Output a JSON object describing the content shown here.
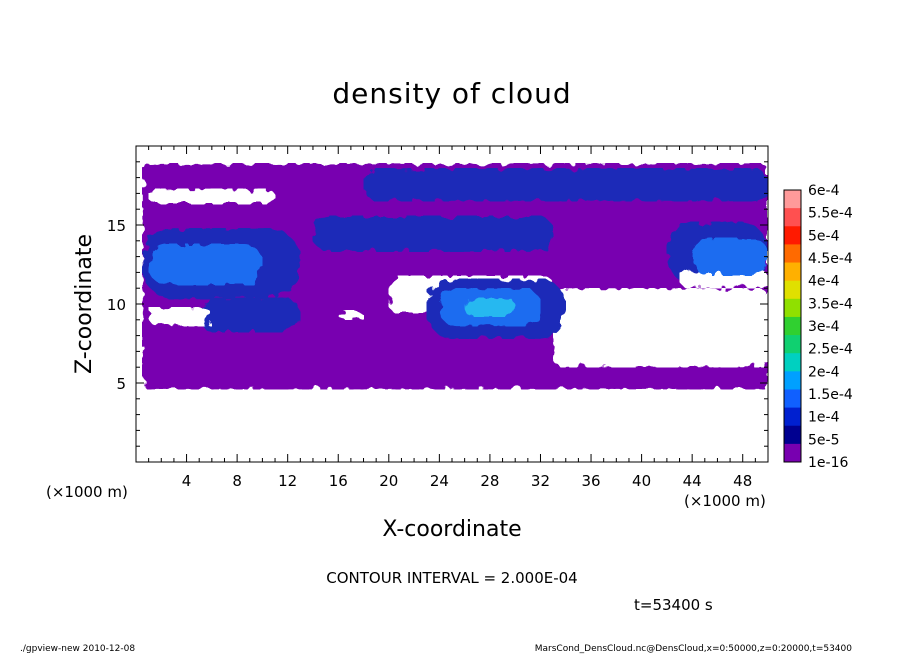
{
  "chart_data": {
    "type": "heatmap",
    "title": "density of cloud",
    "xlabel": "X-coordinate",
    "ylabel": "Z-coordinate",
    "x_unit": "(×1000 m)",
    "y_unit": "(×1000 m)",
    "xlim": [
      0,
      50
    ],
    "ylim": [
      0,
      20
    ],
    "x_ticks": [
      "4",
      "8",
      "12",
      "16",
      "20",
      "24",
      "28",
      "32",
      "36",
      "40",
      "44",
      "48"
    ],
    "y_ticks": [
      "5",
      "10",
      "15"
    ],
    "contour_interval": "CONTOUR INTERVAL = 2.000E-04",
    "time_label": "t=53400 s",
    "colorbar": {
      "labels": [
        "6e-4",
        "5.5e-4",
        "5e-4",
        "4.5e-4",
        "4e-4",
        "3.5e-4",
        "3e-4",
        "2.5e-4",
        "2e-4",
        "1.5e-4",
        "1e-4",
        "5e-5",
        "1e-16"
      ],
      "colors": [
        "#ff9a9a",
        "#ff5050",
        "#ff1a00",
        "#ff6a00",
        "#ffb000",
        "#e0e000",
        "#90e000",
        "#30d030",
        "#10d070",
        "#00d0c0",
        "#00a0ff",
        "#1060ff",
        "#0020d0",
        "#000090",
        "#7800b0"
      ]
    },
    "regions": [
      {
        "level": "1e-16",
        "x": [
          0.5,
          50
        ],
        "z": [
          4.6,
          18.9
        ]
      },
      {
        "level": "5e-5",
        "x": [
          18,
          50
        ],
        "z": [
          16.5,
          18.6
        ]
      },
      {
        "level": "5e-5",
        "x": [
          14,
          33
        ],
        "z": [
          13.3,
          15.6
        ]
      },
      {
        "level": "5e-5",
        "x": [
          0.5,
          13
        ],
        "z": [
          10.3,
          14.8
        ]
      },
      {
        "level": "5e-5",
        "x": [
          5,
          13
        ],
        "z": [
          8.2,
          10.4
        ]
      },
      {
        "level": "5e-5",
        "x": [
          23,
          34
        ],
        "z": [
          7.8,
          11.6
        ]
      },
      {
        "level": "5e-5",
        "x": [
          42,
          50
        ],
        "z": [
          11.2,
          15.2
        ]
      },
      {
        "level": "1e-4",
        "x": [
          1,
          10
        ],
        "z": [
          11.2,
          13.8
        ]
      },
      {
        "level": "1e-4",
        "x": [
          24,
          32
        ],
        "z": [
          8.6,
          11.0
        ]
      },
      {
        "level": "1e-4",
        "x": [
          44,
          50
        ],
        "z": [
          11.8,
          14.2
        ]
      },
      {
        "level": "1.5e-4",
        "x": [
          26,
          30
        ],
        "z": [
          9.2,
          10.4
        ]
      }
    ],
    "grid": false,
    "legend": "right"
  },
  "footer": {
    "left": "./gpview-new   2010-12-08",
    "right": "MarsCond_DensCloud.nc@DensCloud,x=0:50000,z=0:20000,t=53400"
  }
}
